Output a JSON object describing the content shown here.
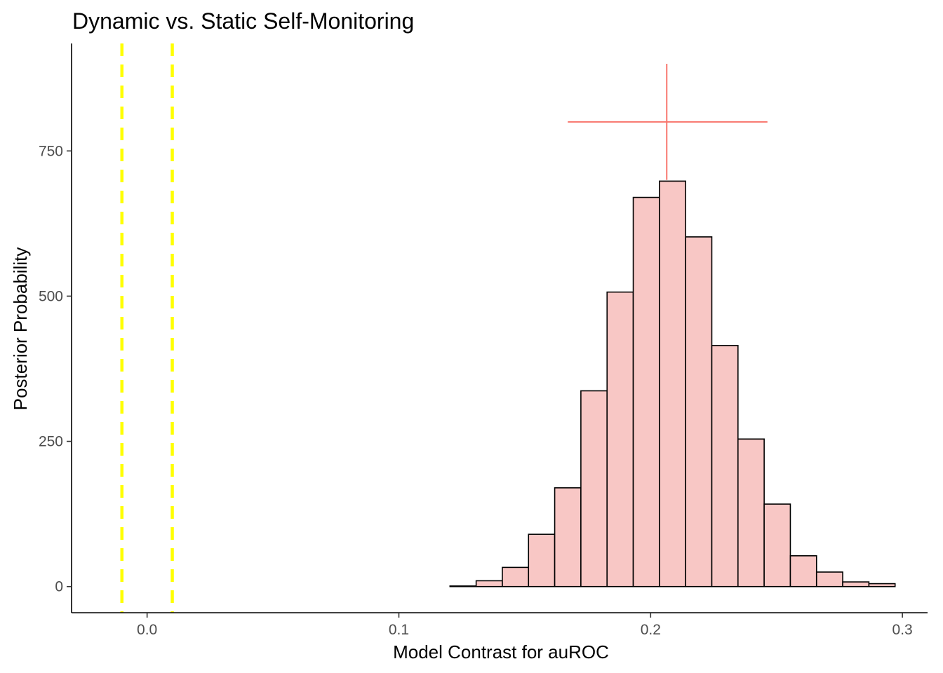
{
  "chart_data": {
    "type": "bar",
    "subtype": "histogram",
    "title": "Dynamic vs. Static Self-Monitoring",
    "xlabel": "Model Contrast for auROC",
    "ylabel": "Posterior Probability",
    "xlim": [
      -0.03,
      0.31
    ],
    "ylim": [
      -45,
      935
    ],
    "x_ticks": [
      {
        "value": 0.0,
        "label": "0.0"
      },
      {
        "value": 0.1,
        "label": "0.1"
      },
      {
        "value": 0.2,
        "label": "0.2"
      },
      {
        "value": 0.3,
        "label": "0.3"
      }
    ],
    "y_ticks": [
      {
        "value": 0,
        "label": "0"
      },
      {
        "value": 250,
        "label": "250"
      },
      {
        "value": 500,
        "label": "500"
      },
      {
        "value": 750,
        "label": "750"
      }
    ],
    "bin_width": 0.0104,
    "bin_centers": [
      -0.0097,
      0.0007,
      0.0111,
      0.0215,
      0.0319,
      0.0423,
      0.0527,
      0.0631,
      0.0735,
      0.0839,
      0.0943,
      0.1047,
      0.1151,
      0.1255,
      0.1359,
      0.1463,
      0.1567,
      0.1671,
      0.1775,
      0.1879,
      0.1983,
      0.2087,
      0.2191,
      0.2295,
      0.2399,
      0.2503,
      0.2607,
      0.2711,
      0.2815,
      0.2919
    ],
    "counts": [
      0,
      0,
      0,
      0,
      0,
      0,
      0,
      0,
      0,
      0,
      0,
      0,
      0,
      1,
      10,
      33,
      90,
      170,
      337,
      507,
      670,
      698,
      602,
      415,
      254,
      142,
      53,
      25,
      8,
      5
    ],
    "bar_fill": "#f8c7c5",
    "bar_stroke": "#000000",
    "rope_lines": [
      -0.01,
      0.01
    ],
    "rope_color": "#ffff00",
    "estimate": {
      "x": 0.2064,
      "xmin": 0.1671,
      "xmax": 0.2464,
      "y": 800,
      "ymin": 700,
      "ymax": 900
    },
    "estimate_color": "#f8766d",
    "grid": false,
    "legend": "none"
  }
}
